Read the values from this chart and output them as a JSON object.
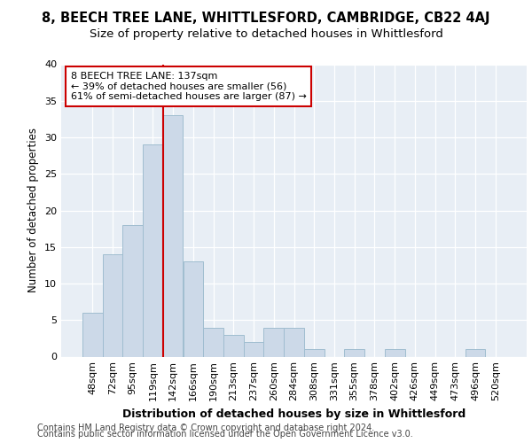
{
  "title1": "8, BEECH TREE LANE, WHITTLESFORD, CAMBRIDGE, CB22 4AJ",
  "title2": "Size of property relative to detached houses in Whittlesford",
  "xlabel": "Distribution of detached houses by size in Whittlesford",
  "ylabel": "Number of detached properties",
  "footer1": "Contains HM Land Registry data © Crown copyright and database right 2024.",
  "footer2": "Contains public sector information licensed under the Open Government Licence v3.0.",
  "annotation_line1": "8 BEECH TREE LANE: 137sqm",
  "annotation_line2": "← 39% of detached houses are smaller (56)",
  "annotation_line3": "61% of semi-detached houses are larger (87) →",
  "bar_color": "#ccd9e8",
  "bar_edge_color": "#a0bdd0",
  "vline_color": "#cc0000",
  "vline_x_idx": 4,
  "categories": [
    "48sqm",
    "72sqm",
    "95sqm",
    "119sqm",
    "142sqm",
    "166sqm",
    "190sqm",
    "213sqm",
    "237sqm",
    "260sqm",
    "284sqm",
    "308sqm",
    "331sqm",
    "355sqm",
    "378sqm",
    "402sqm",
    "426sqm",
    "449sqm",
    "473sqm",
    "496sqm",
    "520sqm"
  ],
  "values": [
    6,
    14,
    18,
    29,
    33,
    13,
    4,
    3,
    2,
    4,
    4,
    1,
    0,
    1,
    0,
    1,
    0,
    0,
    0,
    1,
    0
  ],
  "ylim": [
    0,
    40
  ],
  "yticks": [
    0,
    5,
    10,
    15,
    20,
    25,
    30,
    35,
    40
  ],
  "bg_color": "#e8eef5",
  "grid_color": "#ffffff",
  "fig_bg": "#ffffff",
  "title1_fontsize": 10.5,
  "title2_fontsize": 9.5,
  "xlabel_fontsize": 9,
  "ylabel_fontsize": 8.5,
  "tick_fontsize": 8,
  "annot_fontsize": 8,
  "footer_fontsize": 7
}
